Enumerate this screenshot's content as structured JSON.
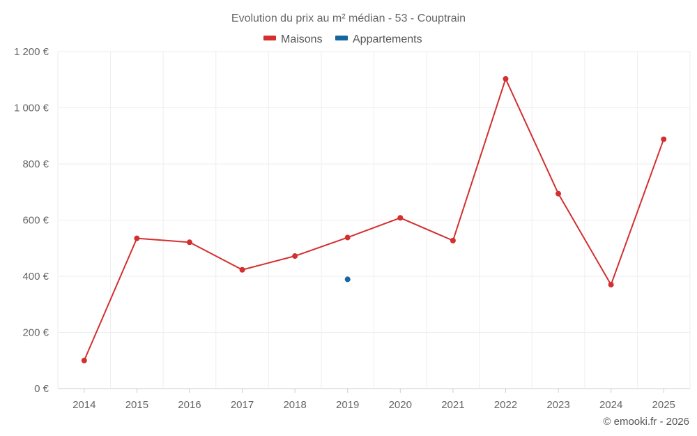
{
  "chart_data": {
    "type": "line",
    "title": "Evolution du prix au m² médian - 53 - Couptrain",
    "categories": [
      "2014",
      "2015",
      "2016",
      "2017",
      "2018",
      "2019",
      "2020",
      "2021",
      "2022",
      "2023",
      "2024",
      "2025"
    ],
    "series": [
      {
        "name": "Maisons",
        "color": "#d32f2f",
        "values": [
          100,
          535,
          521,
          423,
          472,
          538,
          608,
          527,
          1103,
          694,
          370,
          888
        ]
      },
      {
        "name": "Appartements",
        "color": "#1565a0",
        "values": [
          null,
          null,
          null,
          null,
          null,
          389,
          null,
          null,
          null,
          null,
          null,
          null
        ]
      }
    ],
    "ylim": [
      0,
      1200
    ],
    "y_ticks": [
      0,
      200,
      400,
      600,
      800,
      1000,
      1200
    ],
    "y_tick_labels": [
      "0 €",
      "200 €",
      "400 €",
      "600 €",
      "800 €",
      "1 000 €",
      "1 200 €"
    ],
    "xlabel": "",
    "ylabel": "",
    "grid": true,
    "legend_position": "top-center"
  },
  "credit": "© emooki.fr - 2026"
}
